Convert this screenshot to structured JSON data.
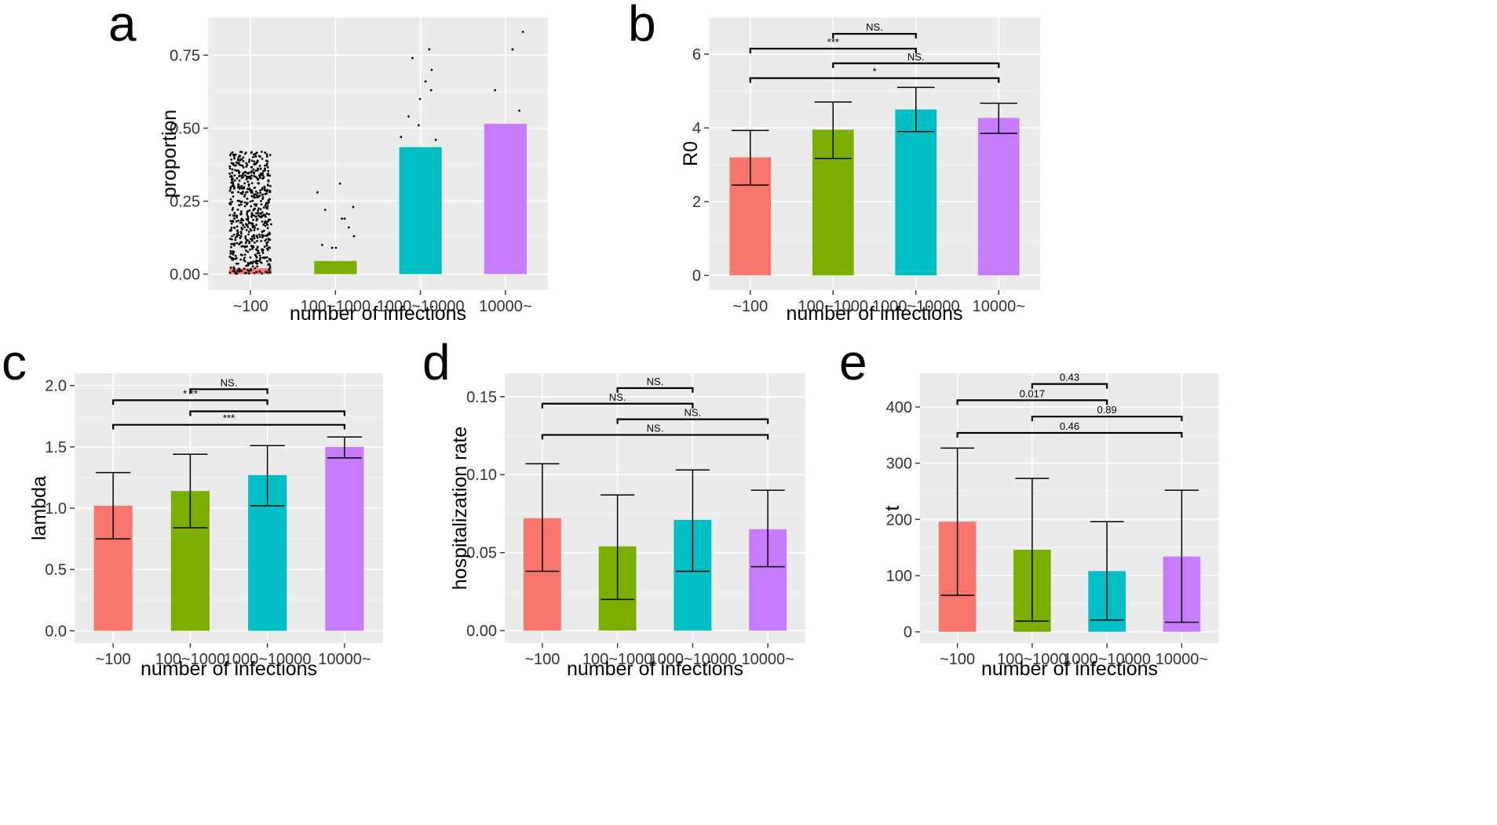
{
  "colors": {
    "~100": "#F8766D",
    "100~1000": "#7CAE00",
    "1000~10000": "#00BFC4",
    "10000~": "#C77CFF"
  },
  "chart_data": [
    {
      "id": "a",
      "panel_label": "a",
      "type": "bar",
      "xlabel": "number of infections",
      "ylabel": "proportion",
      "categories": [
        "~100",
        "100~1000",
        "1000~10000",
        "10000~"
      ],
      "values": [
        0.02,
        0.045,
        0.435,
        0.515
      ],
      "ylim": [
        -0.055,
        0.88
      ],
      "yticks": [
        0.0,
        0.25,
        0.5,
        0.75
      ],
      "ytick_labels": [
        "0.00",
        "0.25",
        "0.50",
        "0.75"
      ],
      "jitter_points": [
        {
          "category_index": 0,
          "n": 600,
          "min": 0.0,
          "max": 0.42
        },
        {
          "category_index": 1,
          "values": [
            0.31,
            0.28,
            0.23,
            0.22,
            0.19,
            0.19,
            0.16,
            0.13,
            0.1,
            0.09,
            0.09
          ]
        },
        {
          "category_index": 2,
          "values": [
            0.77,
            0.74,
            0.7,
            0.66,
            0.63,
            0.6,
            0.54,
            0.51,
            0.47,
            0.46
          ]
        },
        {
          "category_index": 3,
          "values": [
            0.83,
            0.77,
            0.63,
            0.56
          ]
        }
      ]
    },
    {
      "id": "b",
      "panel_label": "b",
      "type": "bar",
      "xlabel": "number of infections",
      "ylabel": "R0",
      "categories": [
        "~100",
        "100~1000",
        "1000~10000",
        "10000~"
      ],
      "values": [
        3.2,
        3.95,
        4.5,
        4.27
      ],
      "errors": [
        [
          2.45,
          3.93
        ],
        [
          3.17,
          4.7
        ],
        [
          3.9,
          5.1
        ],
        [
          3.85,
          4.67
        ]
      ],
      "ylim": [
        -0.4,
        7.0
      ],
      "yticks": [
        0,
        2,
        4,
        6
      ],
      "ytick_labels": [
        "0",
        "2",
        "4",
        "6"
      ],
      "comparisons": [
        {
          "from": 1,
          "to": 2,
          "y": 6.55,
          "label": "NS."
        },
        {
          "from": 0,
          "to": 2,
          "y": 6.15,
          "label": "***"
        },
        {
          "from": 1,
          "to": 3,
          "y": 5.75,
          "label": "NS."
        },
        {
          "from": 0,
          "to": 3,
          "y": 5.35,
          "label": "*"
        }
      ]
    },
    {
      "id": "c",
      "panel_label": "c",
      "type": "bar",
      "xlabel": "number of infections",
      "ylabel": "lambda",
      "categories": [
        "~100",
        "100~1000",
        "1000~10000",
        "10000~"
      ],
      "values": [
        1.02,
        1.14,
        1.27,
        1.5
      ],
      "errors": [
        [
          0.75,
          1.29
        ],
        [
          0.84,
          1.44
        ],
        [
          1.02,
          1.51
        ],
        [
          1.41,
          1.58
        ]
      ],
      "ylim": [
        -0.1,
        2.1
      ],
      "yticks": [
        0.0,
        0.5,
        1.0,
        1.5,
        2.0
      ],
      "ytick_labels": [
        "0.0",
        "0.5",
        "1.0",
        "1.5",
        "2.0"
      ],
      "comparisons": [
        {
          "from": 1,
          "to": 2,
          "y": 1.97,
          "label": "NS."
        },
        {
          "from": 0,
          "to": 2,
          "y": 1.88,
          "label": "* **"
        },
        {
          "from": 1,
          "to": 3,
          "y": 1.79,
          "label": ""
        },
        {
          "from": 0,
          "to": 3,
          "y": 1.68,
          "label": "***"
        }
      ]
    },
    {
      "id": "d",
      "panel_label": "d",
      "type": "bar",
      "xlabel": "number of infections",
      "ylabel": "hospitalization rate",
      "categories": [
        "~100",
        "100~1000",
        "1000~10000",
        "10000~"
      ],
      "values": [
        0.072,
        0.054,
        0.071,
        0.065
      ],
      "errors": [
        [
          0.038,
          0.107
        ],
        [
          0.02,
          0.087
        ],
        [
          0.038,
          0.103
        ],
        [
          0.041,
          0.09
        ]
      ],
      "ylim": [
        -0.008,
        0.165
      ],
      "yticks": [
        0.0,
        0.05,
        0.1,
        0.15
      ],
      "ytick_labels": [
        "0.00",
        "0.05",
        "0.10",
        "0.15"
      ],
      "comparisons": [
        {
          "from": 1,
          "to": 2,
          "y": 0.1555,
          "label": "NS."
        },
        {
          "from": 0,
          "to": 2,
          "y": 0.1455,
          "label": "NS."
        },
        {
          "from": 1,
          "to": 3,
          "y": 0.1355,
          "label": "NS."
        },
        {
          "from": 0,
          "to": 3,
          "y": 0.1255,
          "label": "NS."
        }
      ]
    },
    {
      "id": "e",
      "panel_label": "e",
      "type": "bar",
      "xlabel": "number of infections",
      "ylabel": "t",
      "categories": [
        "~100",
        "100~1000",
        "1000~10000",
        "10000~"
      ],
      "values": [
        196,
        146,
        108,
        134
      ],
      "errors": [
        [
          65,
          327
        ],
        [
          19,
          273
        ],
        [
          21,
          196
        ],
        [
          17,
          252
        ]
      ],
      "ylim": [
        -20,
        460
      ],
      "yticks": [
        0,
        100,
        200,
        300,
        400
      ],
      "ytick_labels": [
        "0",
        "100",
        "200",
        "300",
        "400"
      ],
      "comparisons": [
        {
          "from": 1,
          "to": 2,
          "y": 441,
          "label": "0.43"
        },
        {
          "from": 0,
          "to": 2,
          "y": 412,
          "label": "0.017"
        },
        {
          "from": 1,
          "to": 3,
          "y": 383,
          "label": "0.89"
        },
        {
          "from": 0,
          "to": 3,
          "y": 354,
          "label": "0.46"
        }
      ]
    }
  ]
}
